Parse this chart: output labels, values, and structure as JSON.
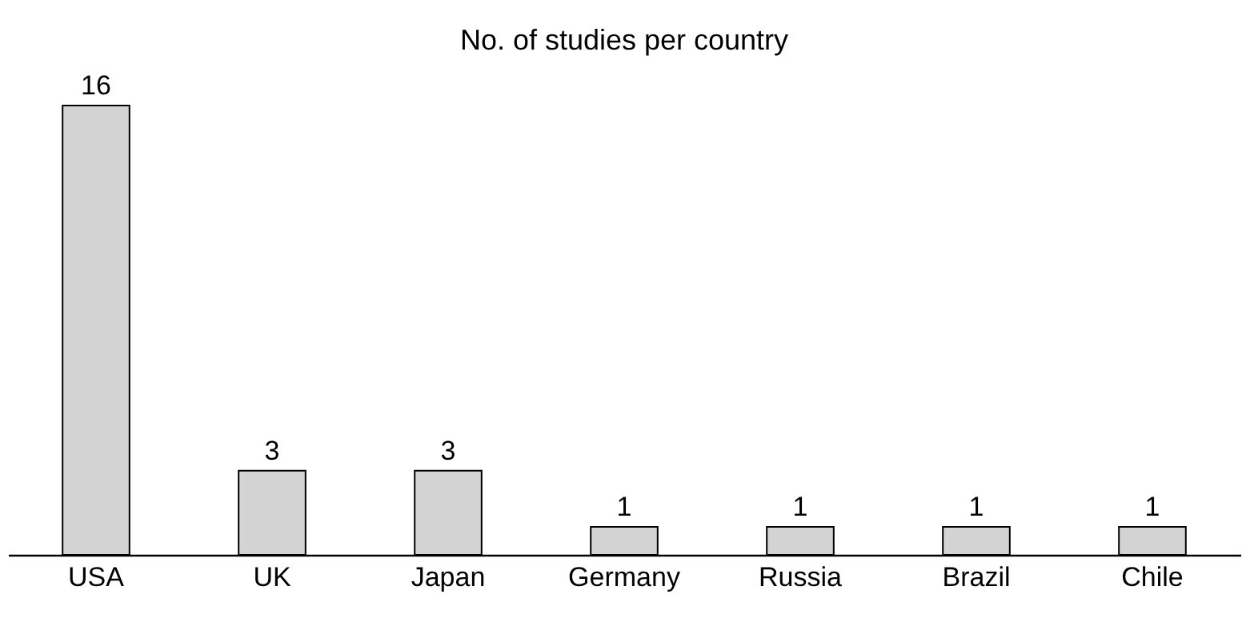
{
  "chart_data": {
    "type": "bar",
    "title": "No. of studies per country",
    "categories": [
      "USA",
      "UK",
      "Japan",
      "Germany",
      "Russia",
      "Brazil",
      "Chile"
    ],
    "values": [
      16,
      3,
      3,
      1,
      1,
      1,
      1
    ],
    "color": "#d3d3d3",
    "data_labels": true,
    "grid": false
  }
}
